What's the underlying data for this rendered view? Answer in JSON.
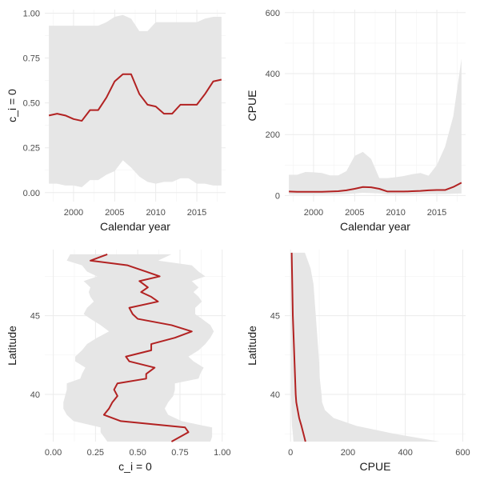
{
  "colors": {
    "line": "#b22222",
    "ribbon": "#e6e6e6",
    "grid": "#ebebeb"
  },
  "chart_data": [
    {
      "type": "line",
      "xlabel": "Calendar year",
      "ylabel": "c_i = 0",
      "xlim": [
        1996.5,
        2018.5
      ],
      "ylim": [
        -0.05,
        1.02
      ],
      "xticks": [
        2000,
        2005,
        2010,
        2015
      ],
      "xtick_labels": [
        "2000",
        "2005",
        "2010",
        "2015"
      ],
      "yticks": [
        0,
        0.25,
        0.5,
        0.75,
        1
      ],
      "ytick_labels": [
        "0.00",
        "0.25",
        "0.50",
        "0.75",
        "1.00"
      ],
      "grid": true,
      "x": [
        1997,
        1998,
        1999,
        2000,
        2001,
        2002,
        2003,
        2004,
        2005,
        2006,
        2007,
        2008,
        2009,
        2010,
        2011,
        2012,
        2013,
        2014,
        2015,
        2016,
        2017,
        2018
      ],
      "y": [
        0.43,
        0.44,
        0.43,
        0.41,
        0.4,
        0.46,
        0.46,
        0.53,
        0.62,
        0.66,
        0.66,
        0.55,
        0.49,
        0.48,
        0.44,
        0.44,
        0.49,
        0.49,
        0.49,
        0.55,
        0.62,
        0.63
      ],
      "lower": [
        0.05,
        0.05,
        0.04,
        0.04,
        0.03,
        0.07,
        0.07,
        0.1,
        0.12,
        0.18,
        0.14,
        0.09,
        0.06,
        0.05,
        0.06,
        0.06,
        0.08,
        0.08,
        0.05,
        0.05,
        0.04,
        0.04
      ],
      "upper": [
        0.93,
        0.93,
        0.93,
        0.93,
        0.93,
        0.93,
        0.93,
        0.95,
        0.98,
        0.99,
        0.97,
        0.9,
        0.9,
        0.95,
        0.95,
        0.95,
        0.95,
        0.95,
        0.95,
        0.97,
        0.98,
        0.98
      ]
    },
    {
      "type": "line",
      "xlabel": "Calendar year",
      "ylabel": "CPUE",
      "xlim": [
        1996.5,
        2018.5
      ],
      "ylim": [
        -20,
        610
      ],
      "xticks": [
        2000,
        2005,
        2010,
        2015
      ],
      "xtick_labels": [
        "2000",
        "2005",
        "2010",
        "2015"
      ],
      "yticks": [
        0,
        200,
        400,
        600
      ],
      "ytick_labels": [
        "0",
        "200",
        "400",
        "600"
      ],
      "grid": true,
      "x": [
        1997,
        1998,
        1999,
        2000,
        2001,
        2002,
        2003,
        2004,
        2005,
        2006,
        2007,
        2008,
        2009,
        2010,
        2011,
        2012,
        2013,
        2014,
        2015,
        2016,
        2017,
        2018
      ],
      "y": [
        13,
        12,
        12,
        12,
        12,
        13,
        14,
        17,
        22,
        28,
        27,
        22,
        13,
        13,
        13,
        14,
        15,
        17,
        18,
        18,
        28,
        42
      ],
      "lower": [
        4,
        4,
        4,
        4,
        4,
        4,
        4,
        5,
        7,
        9,
        8,
        7,
        4,
        4,
        4,
        4,
        5,
        5,
        5,
        5,
        6,
        7
      ],
      "upper": [
        68,
        68,
        77,
        76,
        74,
        66,
        66,
        80,
        130,
        143,
        120,
        57,
        57,
        60,
        64,
        70,
        74,
        65,
        100,
        160,
        260,
        450
      ]
    },
    {
      "type": "line",
      "xlabel": "c_i = 0",
      "ylabel": "Latitude",
      "xlim": [
        -0.05,
        1.02
      ],
      "ylim": [
        37.0,
        49.2
      ],
      "xticks": [
        0,
        0.25,
        0.5,
        0.75,
        1
      ],
      "xtick_labels": [
        "0.00",
        "0.25",
        "0.50",
        "0.75",
        "1.00"
      ],
      "yticks": [
        40,
        45
      ],
      "ytick_labels": [
        "40",
        "45"
      ],
      "grid": true,
      "y": [
        37.0,
        37.3,
        37.6,
        37.9,
        38.3,
        38.7,
        39.1,
        39.5,
        39.9,
        40.3,
        40.7,
        41.0,
        41.3,
        41.7,
        42.1,
        42.4,
        42.8,
        43.2,
        43.6,
        44.0,
        44.4,
        44.8,
        45.1,
        45.5,
        45.9,
        46.2,
        46.5,
        46.8,
        47.2,
        47.5,
        47.8,
        48.2,
        48.5,
        48.9
      ],
      "x": [
        0.7,
        0.75,
        0.8,
        0.78,
        0.4,
        0.3,
        0.33,
        0.35,
        0.38,
        0.36,
        0.38,
        0.55,
        0.55,
        0.6,
        0.45,
        0.43,
        0.58,
        0.58,
        0.72,
        0.82,
        0.7,
        0.5,
        0.47,
        0.45,
        0.62,
        0.58,
        0.52,
        0.56,
        0.51,
        0.63,
        0.55,
        0.44,
        0.22,
        0.32
      ],
      "lower": [
        0.32,
        0.3,
        0.28,
        0.28,
        0.12,
        0.08,
        0.06,
        0.06,
        0.07,
        0.08,
        0.08,
        0.16,
        0.17,
        0.19,
        0.13,
        0.13,
        0.17,
        0.2,
        0.26,
        0.33,
        0.28,
        0.22,
        0.18,
        0.2,
        0.24,
        0.22,
        0.21,
        0.22,
        0.18,
        0.26,
        0.2,
        0.17,
        0.08,
        0.1
      ],
      "upper": [
        0.93,
        0.94,
        0.94,
        0.94,
        0.76,
        0.68,
        0.66,
        0.68,
        0.71,
        0.72,
        0.72,
        0.86,
        0.87,
        0.89,
        0.83,
        0.8,
        0.86,
        0.9,
        0.93,
        0.95,
        0.93,
        0.88,
        0.84,
        0.84,
        0.88,
        0.86,
        0.83,
        0.86,
        0.82,
        0.9,
        0.86,
        0.82,
        0.62,
        0.7
      ]
    },
    {
      "type": "line",
      "xlabel": "CPUE",
      "ylabel": "Latitude",
      "xlim": [
        -20,
        610
      ],
      "ylim": [
        37.0,
        49.2
      ],
      "xticks": [
        0,
        200,
        400,
        600
      ],
      "xtick_labels": [
        "0",
        "200",
        "400",
        "600"
      ],
      "yticks": [
        40,
        45
      ],
      "ytick_labels": [
        "40",
        "45"
      ],
      "grid": true,
      "y": [
        37.0,
        37.5,
        38.0,
        38.5,
        39.0,
        39.5,
        40.0,
        41.0,
        42.0,
        43.0,
        44.0,
        45.0,
        46.0,
        47.0,
        48.0,
        49.0
      ],
      "x": [
        52,
        45,
        38,
        30,
        25,
        20,
        18,
        16,
        14,
        12,
        10,
        8,
        7,
        6,
        5,
        4
      ],
      "lower": [
        10,
        8,
        5,
        4,
        3,
        3,
        2,
        2,
        2,
        2,
        2,
        2,
        1,
        1,
        1,
        1
      ],
      "upper": [
        520,
        360,
        230,
        150,
        120,
        110,
        108,
        102,
        100,
        96,
        92,
        88,
        84,
        80,
        70,
        50
      ]
    }
  ]
}
